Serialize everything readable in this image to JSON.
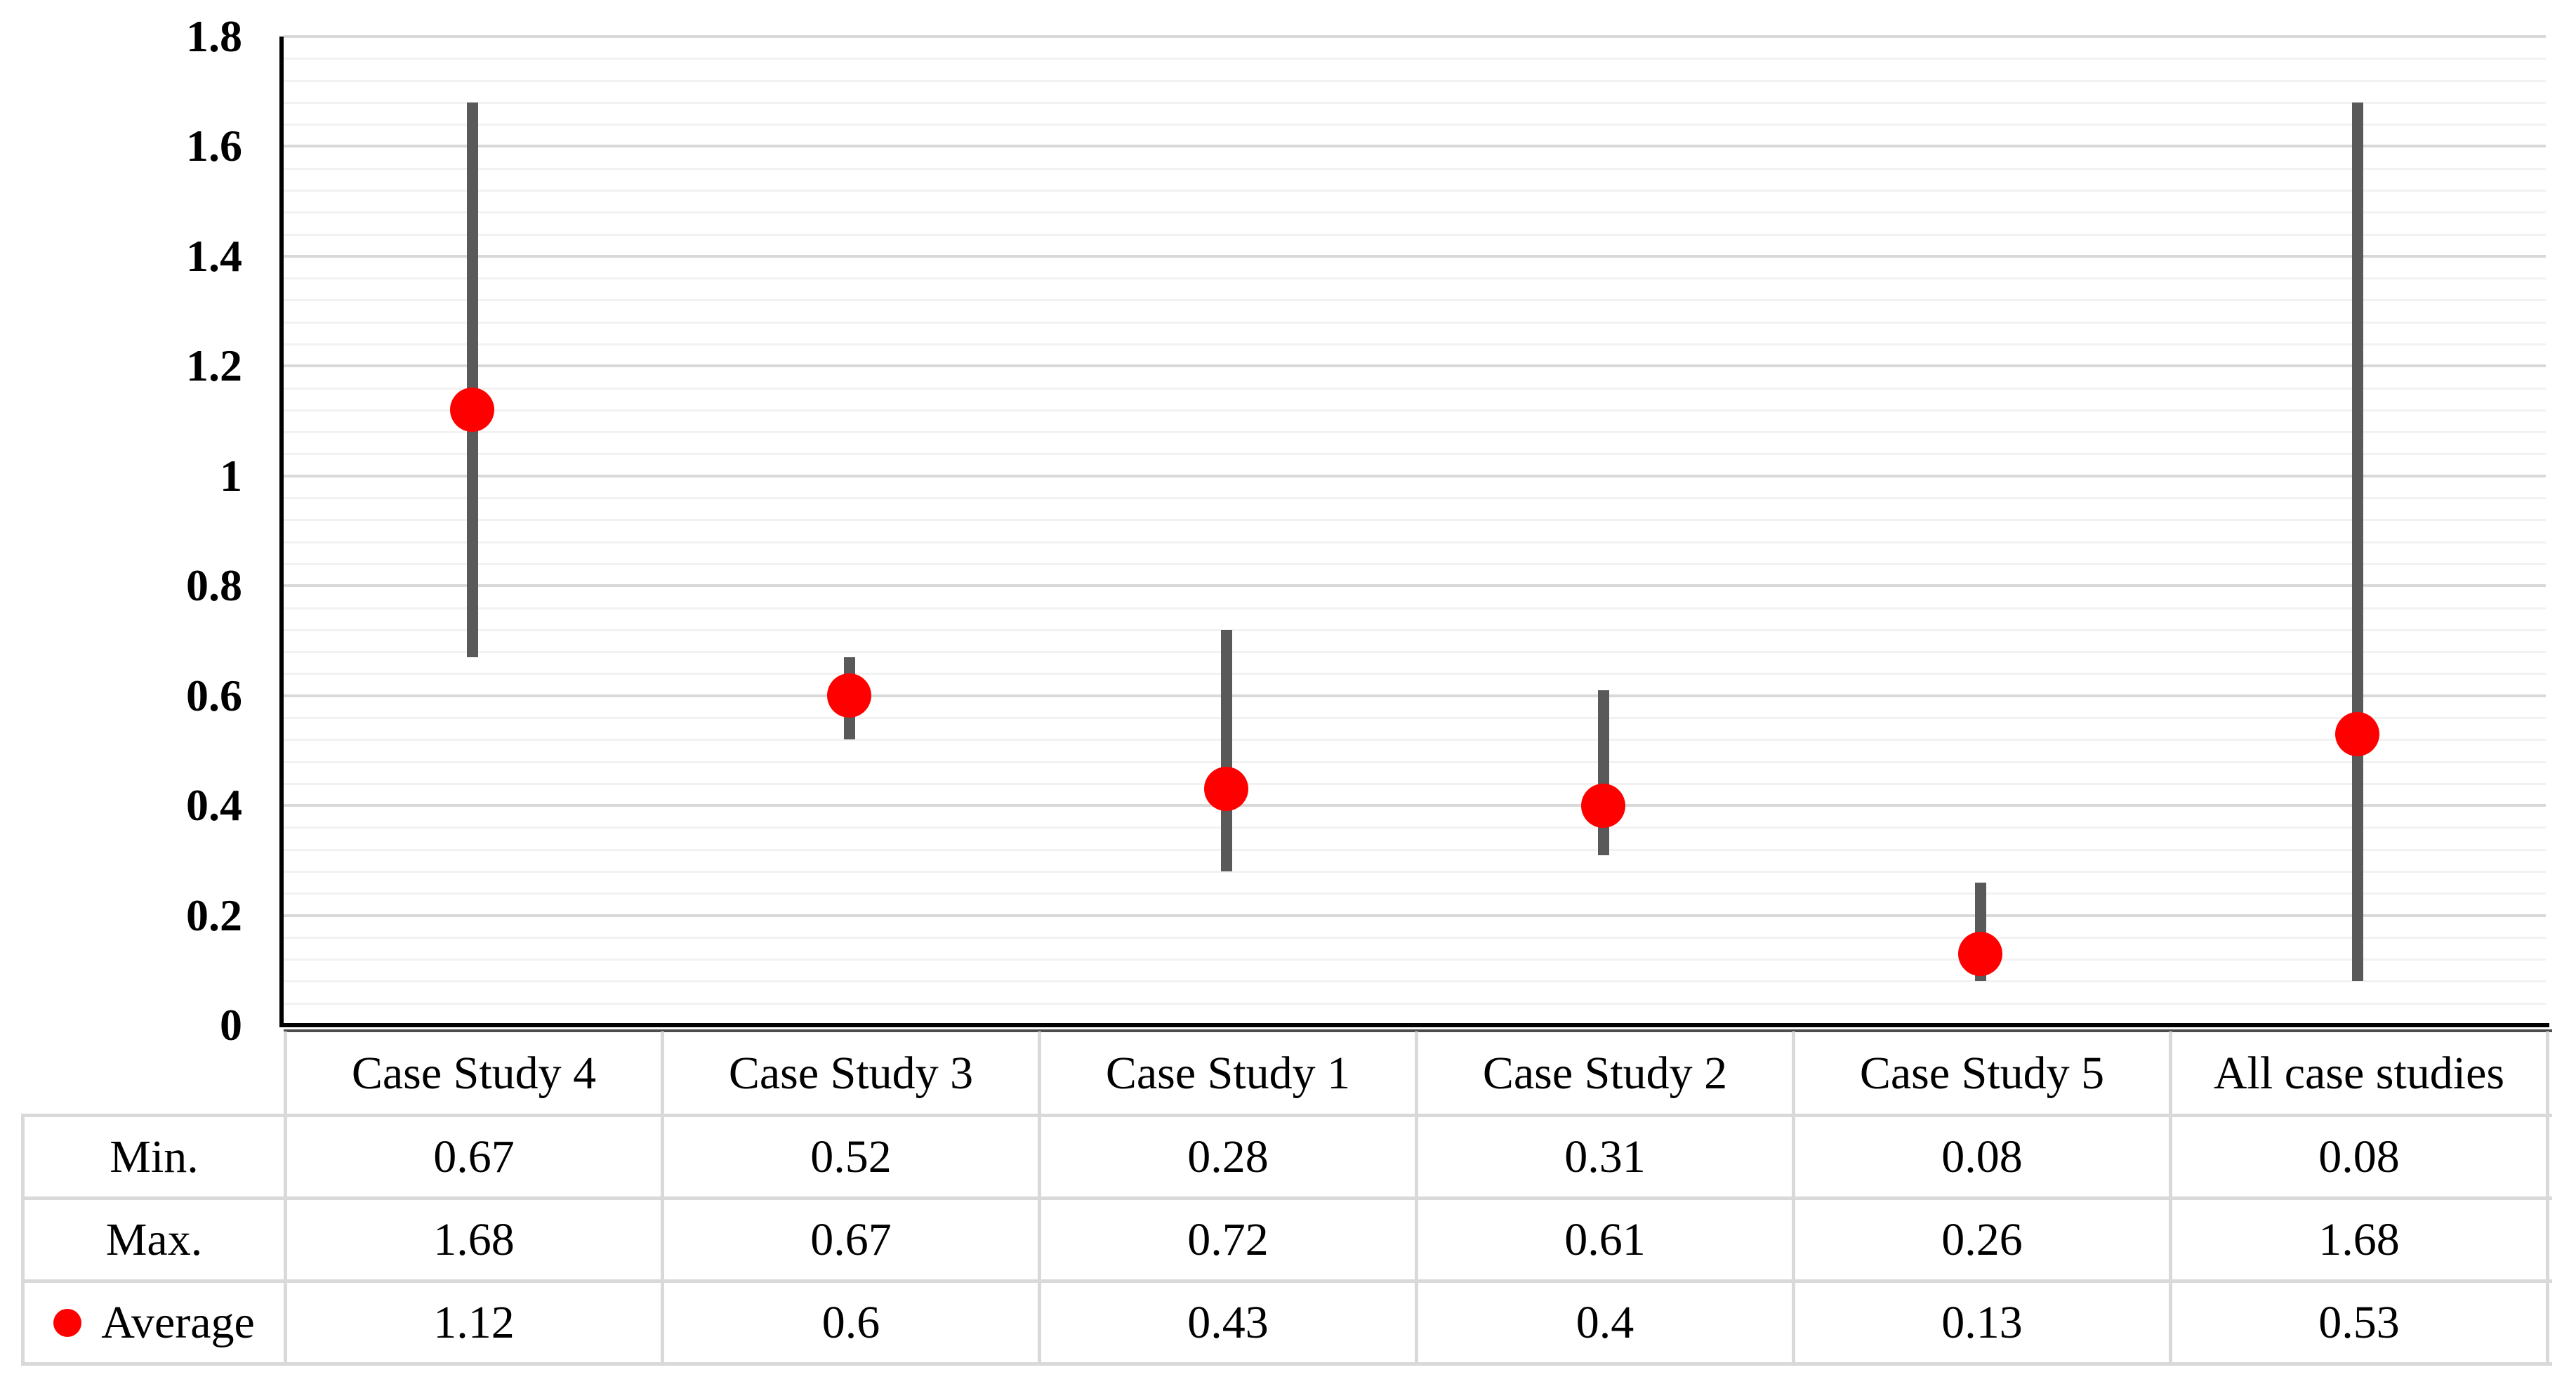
{
  "chart_data": {
    "type": "scatter",
    "subtype": "hi-lo-range-bars-with-average-markers",
    "title": "",
    "xlabel": "",
    "ylabel": "",
    "categories": [
      "Case Study 4",
      "Case Study 3",
      "Case Study 1",
      "Case Study 2",
      "Case Study 5",
      "All case studies"
    ],
    "series": [
      {
        "name": "Min.",
        "values": [
          0.67,
          0.52,
          0.28,
          0.31,
          0.08,
          0.08
        ]
      },
      {
        "name": "Max.",
        "values": [
          1.68,
          0.67,
          0.72,
          0.61,
          0.26,
          1.68
        ]
      },
      {
        "name": "Average",
        "values": [
          1.12,
          0.6,
          0.43,
          0.4,
          0.13,
          0.53
        ]
      }
    ],
    "y_axis": {
      "min": 0,
      "max": 1.8,
      "major_tick": 0.2,
      "minor_tick": 0.04,
      "tick_labels": [
        "0",
        "0.2",
        "0.4",
        "0.6",
        "0.8",
        "1",
        "1.2",
        "1.4",
        "1.6",
        "1.8"
      ]
    },
    "grid": {
      "major": true,
      "minor": true
    },
    "legend": {
      "position": "table-row-label",
      "marker": "red-dot",
      "series": "Average"
    }
  },
  "table": {
    "column_headers": [
      "Case Study 4",
      "Case Study 3",
      "Case Study 1",
      "Case Study 2",
      "Case Study 5",
      "All case studies"
    ],
    "rows": [
      {
        "label": "Min.",
        "has_legend_dot": false,
        "values": [
          "0.67",
          "0.52",
          "0.28",
          "0.31",
          "0.08",
          "0.08"
        ]
      },
      {
        "label": "Max.",
        "has_legend_dot": false,
        "values": [
          "1.68",
          "0.67",
          "0.72",
          "0.61",
          "0.26",
          "1.68"
        ]
      },
      {
        "label": "Average",
        "has_legend_dot": true,
        "values": [
          "1.12",
          "0.6",
          "0.43",
          "0.4",
          "0.13",
          "0.53"
        ]
      }
    ]
  },
  "colors": {
    "average_dot": "#ff0000",
    "range_bar": "#595959",
    "grid_major": "#d9d9d9",
    "grid_minor": "#f2f2f2",
    "table_border": "#d9d9d9",
    "table_top_rule": "#4d4d4d",
    "axis": "#000000",
    "background": "#ffffff",
    "text": "#000000"
  }
}
